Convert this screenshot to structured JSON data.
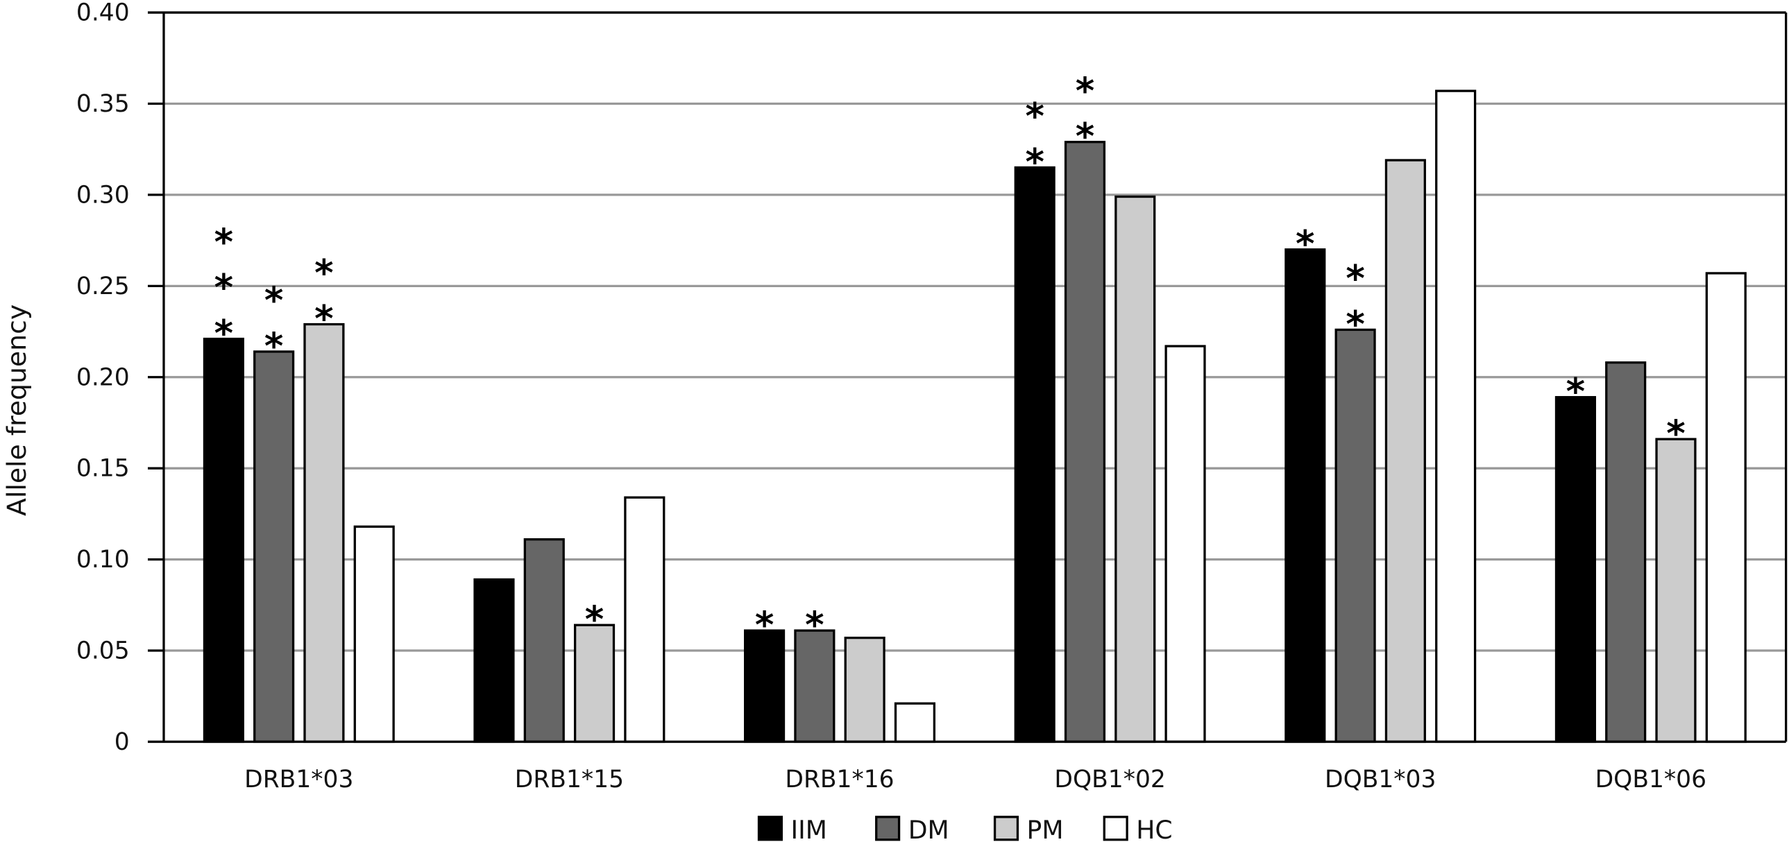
{
  "chart_data": {
    "type": "bar",
    "title": "",
    "xlabel": "",
    "ylabel": "Allele frequency",
    "ylim": [
      0,
      0.4
    ],
    "yticks": [
      "0",
      "0.05",
      "0.10",
      "0.15",
      "0.20",
      "0.25",
      "0.30",
      "0.35",
      "0.40"
    ],
    "grid": true,
    "legend_position": "bottom",
    "categories": [
      "DRB1*03",
      "DRB1*15",
      "DRB1*16",
      "DQB1*02",
      "DQB1*03",
      "DQB1*06"
    ],
    "series": [
      {
        "name": "IIM",
        "color": "#000000",
        "values": [
          0.221,
          0.089,
          0.061,
          0.315,
          0.27,
          0.189
        ],
        "significance": [
          "***",
          "",
          "*",
          "**",
          "*",
          "*"
        ]
      },
      {
        "name": "DM",
        "color": "#666666",
        "values": [
          0.214,
          0.111,
          0.061,
          0.329,
          0.226,
          0.208
        ],
        "significance": [
          "**",
          "",
          "*",
          "**",
          "**",
          ""
        ]
      },
      {
        "name": "PM",
        "color": "#cccccc",
        "values": [
          0.229,
          0.064,
          0.057,
          0.299,
          0.319,
          0.166
        ],
        "significance": [
          "**",
          "*",
          "",
          "",
          "",
          "*"
        ]
      },
      {
        "name": "HC",
        "color": "#ffffff",
        "values": [
          0.118,
          0.134,
          0.021,
          0.217,
          0.357,
          0.257
        ],
        "significance": [
          "",
          "",
          "",
          "",
          "",
          ""
        ]
      }
    ]
  }
}
